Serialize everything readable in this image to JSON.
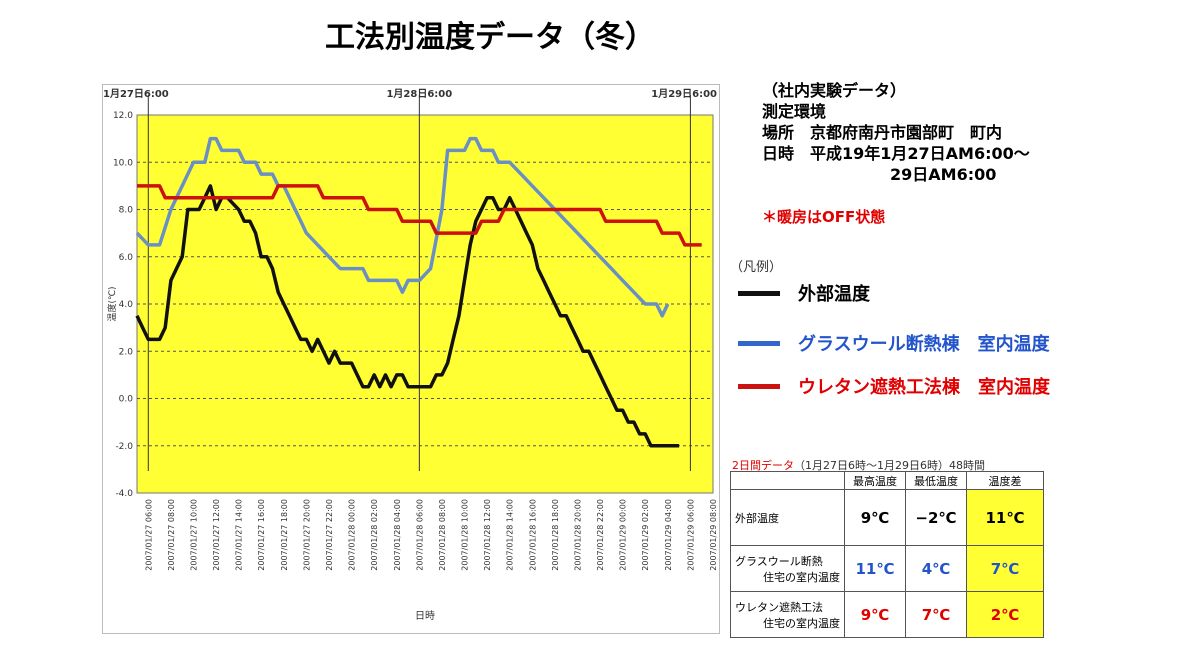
{
  "title": "工法別温度データ（冬）",
  "info": {
    "lines": [
      "（社内実験データ）",
      "測定環境",
      "場所　京都府南丹市園部町　町内",
      "日時　平成19年1月27日AM6:00～",
      "　　　　　　　　29日AM6:00"
    ],
    "note": "＊暖房はOFF状態"
  },
  "legend": {
    "title": "（凡例）",
    "items": [
      {
        "label": "外部温度",
        "color": "#111111",
        "text_color": "#000000"
      },
      {
        "label": "グラスウール断熱棟　室内温度",
        "color": "#3366cc",
        "text_color": "#2255cc"
      },
      {
        "label": "ウレタン遮熱工法棟　室内温度",
        "color": "#cc1111",
        "text_color": "#e00000"
      }
    ]
  },
  "summary": {
    "caption_red": "2日間データ",
    "caption_rest": "（1月27日6時～1月29日6時）48時間",
    "headers": [
      "",
      "最高温度",
      "最低温度",
      "温度差"
    ],
    "rows": [
      {
        "label1": "外部温度",
        "label2": "",
        "max": "9℃",
        "min": "−2℃",
        "diff": "11℃",
        "color": "#000000"
      },
      {
        "label1": "グラスウール断熱",
        "label2": "住宅の室内温度",
        "max": "11℃",
        "min": "4℃",
        "diff": "7℃",
        "color": "#2255cc"
      },
      {
        "label1": "ウレタン遮熱工法",
        "label2": "住宅の室内温度",
        "max": "9℃",
        "min": "7℃",
        "diff": "2℃",
        "color": "#e00000"
      }
    ]
  },
  "chart_data": {
    "type": "line",
    "ylabel": "温度(℃)",
    "xlabel": "日時",
    "ylim": [
      -4,
      12
    ],
    "yticks": [
      "12.0",
      "10.0",
      "8.0",
      "6.0",
      "4.0",
      "2.0",
      "0.0",
      "-2.0",
      "-4.0"
    ],
    "grid": true,
    "background": "#ffff33",
    "markers": [
      {
        "label": "1月27日6:00",
        "x": 0
      },
      {
        "label": "1月28日6:00",
        "x": 24
      },
      {
        "label": "1月29日6:00",
        "x": 48
      }
    ],
    "x_hours_start": -1,
    "x_hours_end": 50,
    "x_tick_labels": [
      "2007/01/27 06:00",
      "2007/01/27 08:00",
      "2007/01/27 10:00",
      "2007/01/27 12:00",
      "2007/01/27 14:00",
      "2007/01/27 16:00",
      "2007/01/27 18:00",
      "2007/01/27 20:00",
      "2007/01/27 22:00",
      "2007/01/28 00:00",
      "2007/01/28 02:00",
      "2007/01/28 04:00",
      "2007/01/28 06:00",
      "2007/01/28 08:00",
      "2007/01/28 10:00",
      "2007/01/28 12:00",
      "2007/01/28 14:00",
      "2007/01/28 16:00",
      "2007/01/28 18:00",
      "2007/01/28 20:00",
      "2007/01/28 22:00",
      "2007/01/29 00:00",
      "2007/01/29 02:00",
      "2007/01/29 04:00",
      "2007/01/29 06:00",
      "2007/01/29 08:00"
    ],
    "series": [
      {
        "name": "外部温度",
        "color": "#111111",
        "points": [
          [
            -1,
            3.5
          ],
          [
            -0.5,
            3
          ],
          [
            0,
            2.5
          ],
          [
            1,
            2.5
          ],
          [
            1.5,
            3
          ],
          [
            2,
            5
          ],
          [
            2.5,
            5.5
          ],
          [
            3,
            6
          ],
          [
            3.5,
            8
          ],
          [
            4,
            8
          ],
          [
            4.5,
            8
          ],
          [
            5,
            8.5
          ],
          [
            5.5,
            9
          ],
          [
            6,
            8
          ],
          [
            6.5,
            8.5
          ],
          [
            7,
            8.5
          ],
          [
            8,
            8
          ],
          [
            8.5,
            7.5
          ],
          [
            9,
            7.5
          ],
          [
            9.5,
            7
          ],
          [
            10,
            6
          ],
          [
            10.5,
            6
          ],
          [
            11,
            5.5
          ],
          [
            11.5,
            4.5
          ],
          [
            12,
            4
          ],
          [
            12.5,
            3.5
          ],
          [
            13,
            3
          ],
          [
            13.5,
            2.5
          ],
          [
            14,
            2.5
          ],
          [
            14.5,
            2
          ],
          [
            15,
            2.5
          ],
          [
            15.5,
            2
          ],
          [
            16,
            1.5
          ],
          [
            16.5,
            2
          ],
          [
            17,
            1.5
          ],
          [
            18,
            1.5
          ],
          [
            18.5,
            1
          ],
          [
            19,
            0.5
          ],
          [
            19.5,
            0.5
          ],
          [
            20,
            1
          ],
          [
            20.5,
            0.5
          ],
          [
            21,
            1
          ],
          [
            21.5,
            0.5
          ],
          [
            22,
            1
          ],
          [
            22.5,
            1
          ],
          [
            23,
            0.5
          ],
          [
            24,
            0.5
          ],
          [
            25,
            0.5
          ],
          [
            25.5,
            1
          ],
          [
            26,
            1
          ],
          [
            26.5,
            1.5
          ],
          [
            27,
            2.5
          ],
          [
            27.5,
            3.5
          ],
          [
            28,
            5
          ],
          [
            28.5,
            6.5
          ],
          [
            29,
            7.5
          ],
          [
            29.5,
            8
          ],
          [
            30,
            8.5
          ],
          [
            30.5,
            8.5
          ],
          [
            31,
            8
          ],
          [
            31.5,
            8
          ],
          [
            32,
            8.5
          ],
          [
            32.5,
            8
          ],
          [
            33,
            7.5
          ],
          [
            33.5,
            7
          ],
          [
            34,
            6.5
          ],
          [
            34.5,
            5.5
          ],
          [
            35,
            5
          ],
          [
            35.5,
            4.5
          ],
          [
            36,
            4
          ],
          [
            36.5,
            3.5
          ],
          [
            37,
            3.5
          ],
          [
            37.5,
            3
          ],
          [
            38,
            2.5
          ],
          [
            38.5,
            2
          ],
          [
            39,
            2
          ],
          [
            39.5,
            1.5
          ],
          [
            40,
            1
          ],
          [
            40.5,
            0.5
          ],
          [
            41,
            0
          ],
          [
            41.5,
            -0.5
          ],
          [
            42,
            -0.5
          ],
          [
            42.5,
            -1
          ],
          [
            43,
            -1
          ],
          [
            43.5,
            -1.5
          ],
          [
            44,
            -1.5
          ],
          [
            44.5,
            -2
          ],
          [
            45,
            -2
          ],
          [
            46,
            -2
          ],
          [
            47,
            -2
          ]
        ]
      },
      {
        "name": "グラスウール断熱棟　室内温度",
        "color": "#6a8fc4",
        "points": [
          [
            -1,
            7
          ],
          [
            0,
            6.5
          ],
          [
            1,
            6.5
          ],
          [
            2,
            8
          ],
          [
            3,
            9
          ],
          [
            4,
            10
          ],
          [
            5,
            10
          ],
          [
            5.5,
            11
          ],
          [
            6,
            11
          ],
          [
            6.5,
            10.5
          ],
          [
            8,
            10.5
          ],
          [
            8.5,
            10
          ],
          [
            9.5,
            10
          ],
          [
            10,
            9.5
          ],
          [
            11,
            9.5
          ],
          [
            11.5,
            9
          ],
          [
            12,
            9
          ],
          [
            12.5,
            8.5
          ],
          [
            13,
            8
          ],
          [
            13.5,
            7.5
          ],
          [
            14,
            7
          ],
          [
            15,
            6.5
          ],
          [
            16,
            6
          ],
          [
            17,
            5.5
          ],
          [
            19,
            5.5
          ],
          [
            19.5,
            5
          ],
          [
            22,
            5
          ],
          [
            22.5,
            4.5
          ],
          [
            23,
            5
          ],
          [
            24,
            5
          ],
          [
            25,
            5.5
          ],
          [
            26,
            8
          ],
          [
            26.5,
            10.5
          ],
          [
            28,
            10.5
          ],
          [
            28.5,
            11
          ],
          [
            29,
            11
          ],
          [
            29.5,
            10.5
          ],
          [
            30.5,
            10.5
          ],
          [
            31,
            10
          ],
          [
            32,
            10
          ],
          [
            33,
            9.5
          ],
          [
            34,
            9
          ],
          [
            35,
            8.5
          ],
          [
            36,
            8
          ],
          [
            37,
            7.5
          ],
          [
            38,
            7
          ],
          [
            39,
            6.5
          ],
          [
            40,
            6
          ],
          [
            41,
            5.5
          ],
          [
            42,
            5
          ],
          [
            43,
            4.5
          ],
          [
            44,
            4
          ],
          [
            45,
            4
          ],
          [
            45.5,
            3.5
          ],
          [
            46,
            4
          ]
        ]
      },
      {
        "name": "ウレタン遮熱工法棟　室内温度",
        "color": "#cc1111",
        "points": [
          [
            -1,
            9
          ],
          [
            1,
            9
          ],
          [
            1.5,
            8.5
          ],
          [
            11,
            8.5
          ],
          [
            11.5,
            9
          ],
          [
            15,
            9
          ],
          [
            15.5,
            8.5
          ],
          [
            19,
            8.5
          ],
          [
            19.5,
            8
          ],
          [
            22,
            8
          ],
          [
            22.5,
            7.5
          ],
          [
            25,
            7.5
          ],
          [
            25.5,
            7
          ],
          [
            29,
            7
          ],
          [
            29.5,
            7.5
          ],
          [
            31,
            7.5
          ],
          [
            31.5,
            8
          ],
          [
            40,
            8
          ],
          [
            40.5,
            7.5
          ],
          [
            45,
            7.5
          ],
          [
            45.5,
            7
          ],
          [
            47,
            7
          ],
          [
            47.5,
            6.5
          ],
          [
            49,
            6.5
          ]
        ]
      }
    ]
  }
}
